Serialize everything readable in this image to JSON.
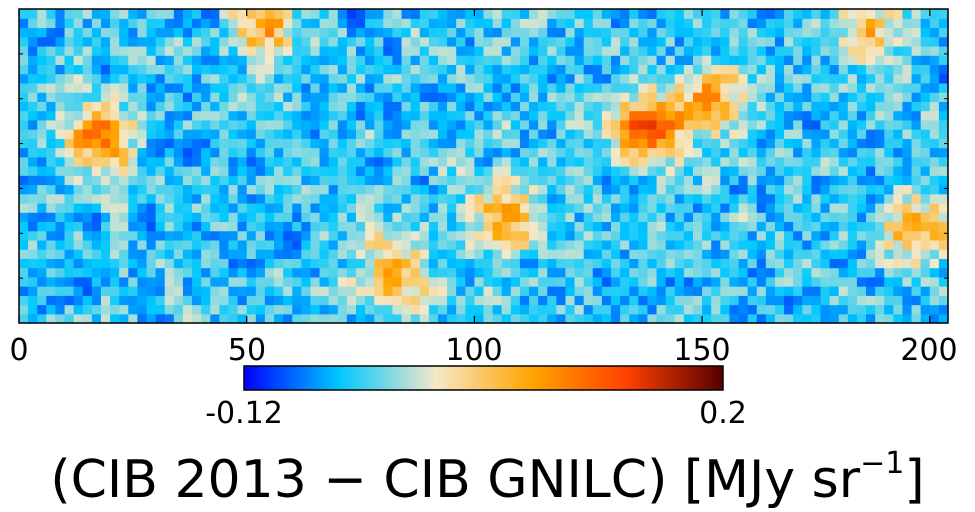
{
  "chart_data": {
    "type": "heatmap",
    "title": "",
    "xlabel": "",
    "ylabel": "",
    "xlim": [
      0,
      204
    ],
    "ylim": [
      0,
      68
    ],
    "grid": false,
    "x_ticks": [
      0,
      50,
      100,
      150,
      200
    ],
    "x_tick_labels": [
      "0",
      "50",
      "100",
      "150",
      "200"
    ],
    "colorbar": {
      "orientation": "horizontal",
      "placement": "below",
      "min": -0.12,
      "max": 0.2,
      "min_label": "-0.12",
      "max_label": "0.2",
      "colormap_stops": [
        "#0000ff",
        "#00c8ff",
        "#f5e8c8",
        "#ffa500",
        "#ff4000",
        "#550000"
      ]
    },
    "caption_parts": {
      "lead": "(CIB 2013 ",
      "operator": "−",
      "tail": " CIB GNILC) [MJy sr",
      "exponent": "−1",
      "close": "]"
    },
    "notable_hotspots": [
      {
        "x": 18,
        "y": 40,
        "value": 0.12
      },
      {
        "x": 138,
        "y": 42,
        "value": 0.17
      },
      {
        "x": 152,
        "y": 48,
        "value": 0.11
      },
      {
        "x": 107,
        "y": 23,
        "value": 0.1
      },
      {
        "x": 82,
        "y": 11,
        "value": 0.1
      },
      {
        "x": 54,
        "y": 64,
        "value": 0.09
      },
      {
        "x": 197,
        "y": 20,
        "value": 0.1
      },
      {
        "x": 186,
        "y": 64,
        "value": 0.08
      }
    ]
  }
}
